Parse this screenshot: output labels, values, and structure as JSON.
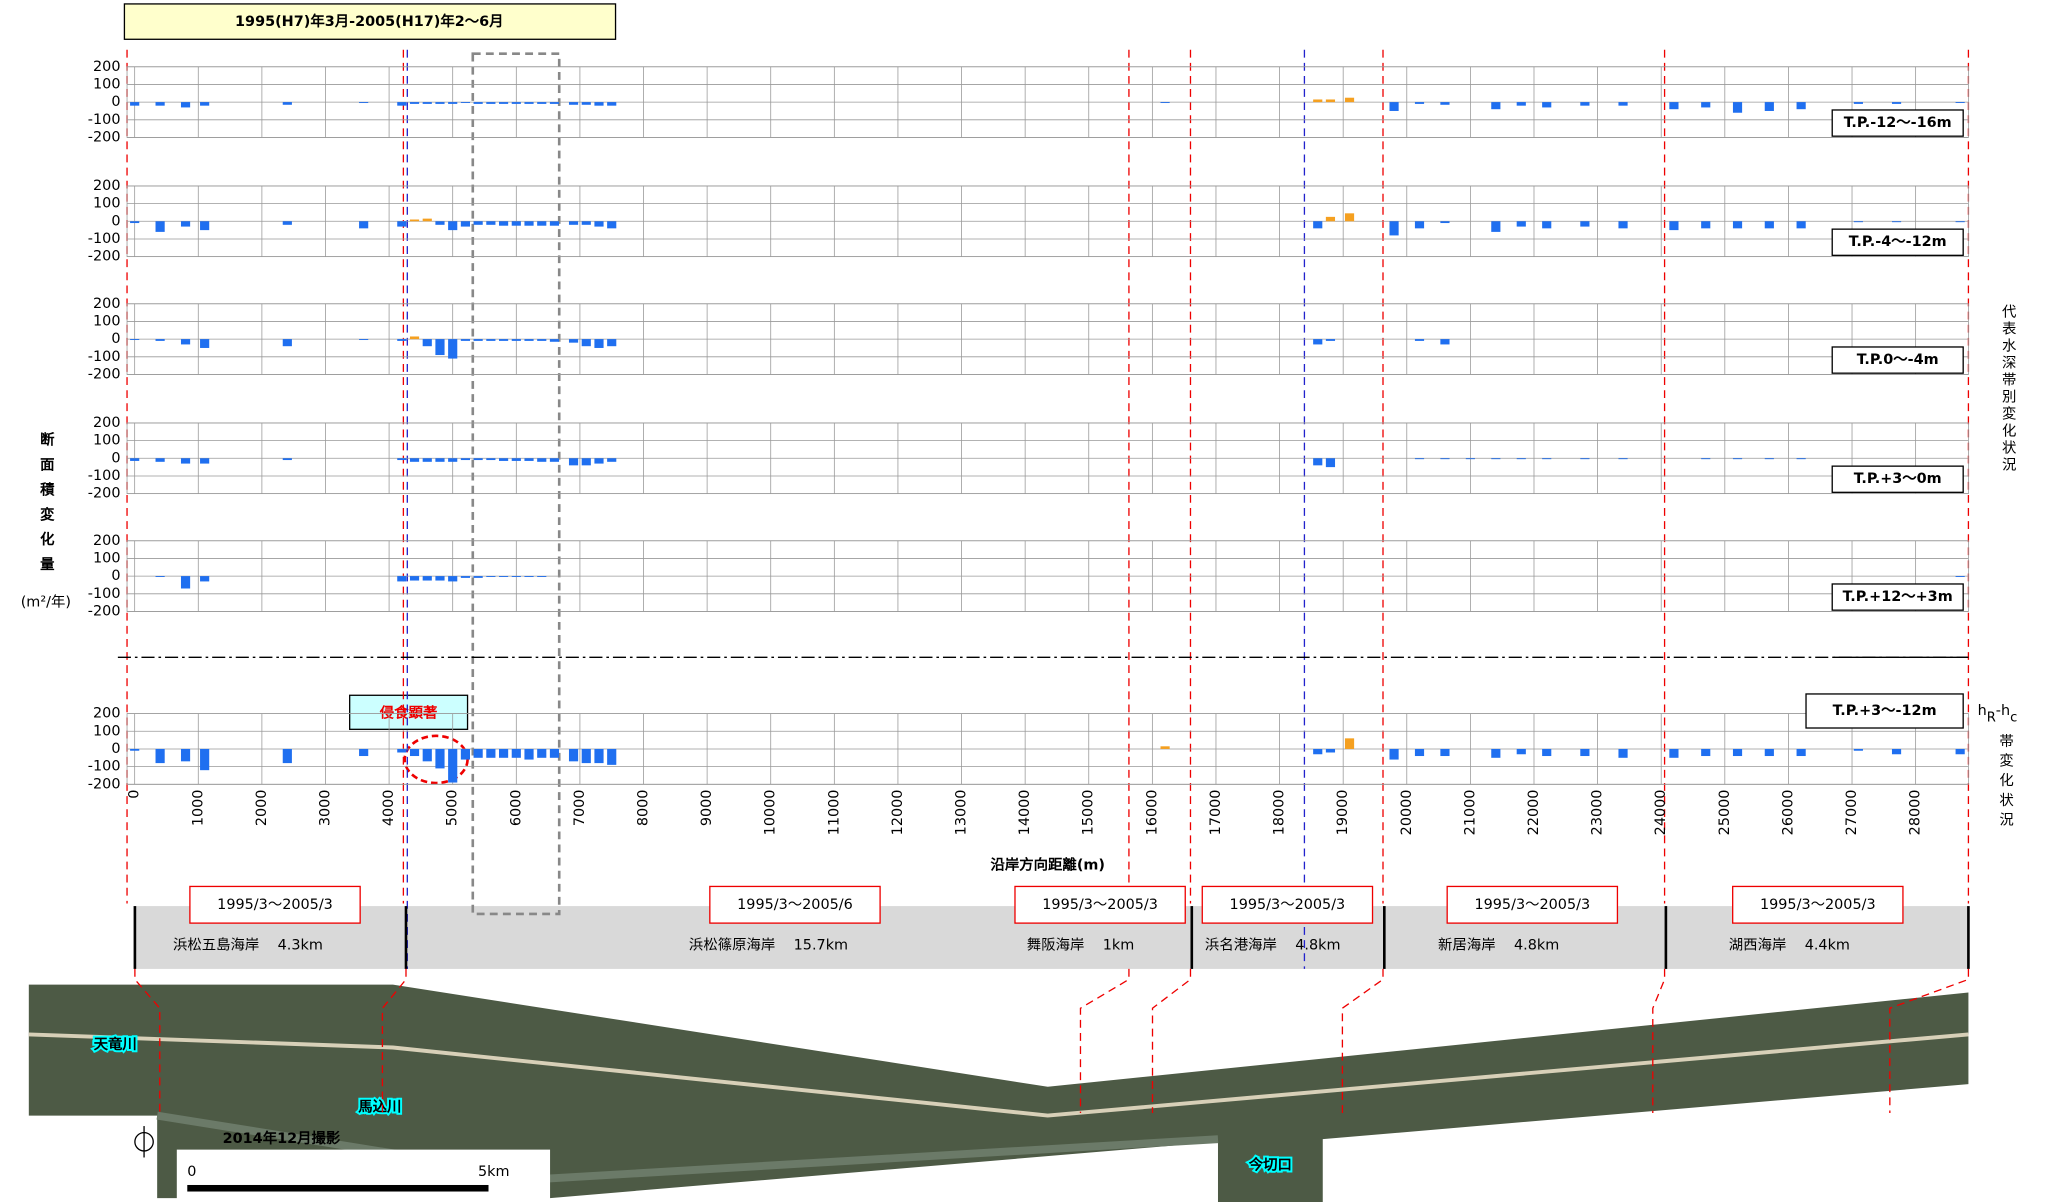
{
  "header": {
    "title": "1995(H7)年3月-2005(H17)年2～6月"
  },
  "chart_data": {
    "type": "bar",
    "xlabel": "沿岸方向距離(m)",
    "ylabel": "断面積変化量",
    "ylabel_unit": "(m²/年)",
    "x": [
      0,
      400,
      800,
      1100,
      2400,
      3600,
      4200,
      4400,
      4600,
      4800,
      5000,
      5200,
      5400,
      5600,
      5800,
      6000,
      6200,
      6400,
      6600,
      6900,
      7100,
      7300,
      7500,
      16200,
      18600,
      18800,
      19100,
      19800,
      20200,
      20600,
      21000,
      21400,
      21800,
      22200,
      22800,
      23400,
      24200,
      24700,
      25200,
      25700,
      26200,
      27100,
      27700,
      28700
    ],
    "xlim": [
      -120,
      28830
    ],
    "xticks": [
      0,
      1000,
      2000,
      3000,
      4000,
      5000,
      6000,
      7000,
      8000,
      9000,
      10000,
      11000,
      12000,
      13000,
      14000,
      15000,
      16000,
      17000,
      18000,
      19000,
      20000,
      21000,
      22000,
      23000,
      24000,
      25000,
      26000,
      27000,
      28000
    ],
    "ylim": [
      -200,
      200
    ],
    "yticks": [
      -200,
      -100,
      0,
      100,
      200
    ],
    "grid": true,
    "colors": {
      "negative": "#1f6ff0",
      "positive": "#f5a020"
    },
    "series": [
      {
        "name": "T.P.-12～-16m",
        "values": [
          -20,
          -20,
          -30,
          -20,
          -15,
          -5,
          -20,
          -10,
          -10,
          -10,
          -10,
          -5,
          -10,
          -10,
          -10,
          -10,
          -10,
          -10,
          -10,
          -15,
          -15,
          -20,
          -20,
          -5,
          15,
          15,
          25,
          -50,
          -10,
          -15,
          null,
          -40,
          -20,
          -30,
          -20,
          -20,
          -40,
          -30,
          -60,
          -50,
          -40,
          -10,
          -10,
          -5
        ]
      },
      {
        "name": "T.P.-4～-12m",
        "values": [
          -10,
          -60,
          -30,
          -50,
          -20,
          -40,
          -30,
          10,
          15,
          -20,
          -50,
          -30,
          -20,
          -20,
          -25,
          -25,
          -25,
          -25,
          -25,
          -20,
          -20,
          -30,
          -40,
          null,
          -40,
          25,
          45,
          -80,
          -40,
          -10,
          null,
          -60,
          -30,
          -40,
          -30,
          -40,
          -50,
          -40,
          -40,
          -40,
          -40,
          -5,
          -5,
          -5
        ]
      },
      {
        "name": "T.P.0～-4m",
        "values": [
          -5,
          -10,
          -30,
          -50,
          -40,
          -5,
          -10,
          15,
          -40,
          -90,
          -110,
          -10,
          -10,
          -10,
          -10,
          -10,
          -10,
          -10,
          -15,
          -20,
          -40,
          -50,
          -40,
          null,
          -30,
          -10,
          null,
          null,
          -10,
          -30,
          null,
          null,
          null,
          null,
          null,
          null,
          null,
          null,
          null,
          null,
          null,
          null,
          null,
          null
        ]
      },
      {
        "name": "T.P.+3～0m",
        "values": [
          -15,
          -20,
          -30,
          -30,
          -10,
          null,
          -10,
          -20,
          -20,
          -20,
          -20,
          -10,
          -10,
          -10,
          -15,
          -15,
          -15,
          -20,
          -20,
          -40,
          -40,
          -30,
          -20,
          null,
          -40,
          -50,
          null,
          null,
          -5,
          -5,
          -5,
          -5,
          -5,
          -5,
          -5,
          -5,
          null,
          -5,
          -5,
          -5,
          -5,
          null,
          null,
          null
        ]
      },
      {
        "name": "T.P.+12～+3m",
        "values": [
          null,
          -5,
          -70,
          -30,
          null,
          null,
          -30,
          -25,
          -25,
          -25,
          -30,
          -10,
          -10,
          -5,
          -5,
          -5,
          -5,
          -5,
          null,
          null,
          null,
          null,
          null,
          null,
          null,
          null,
          null,
          null,
          null,
          null,
          null,
          null,
          null,
          null,
          null,
          null,
          null,
          null,
          null,
          null,
          null,
          null,
          null,
          -5
        ]
      },
      {
        "name": "T.P.+3～-12m",
        "values": [
          -10,
          -80,
          -70,
          -120,
          -80,
          -40,
          -20,
          -40,
          -70,
          -110,
          -190,
          -60,
          -50,
          -50,
          -50,
          -50,
          -60,
          -50,
          -50,
          -70,
          -80,
          -80,
          -90,
          15,
          -30,
          -20,
          60,
          -60,
          -40,
          -40,
          null,
          -50,
          -30,
          -40,
          -40,
          -50,
          -50,
          -40,
          -40,
          -40,
          -40,
          -10,
          -30,
          -30
        ]
      }
    ]
  },
  "annotations": {
    "erosion": "侵食顕著",
    "right_title": "代表水深帯別変化状況",
    "hr_h": "h",
    "hr_r": "R",
    "hr_mid": "-h",
    "hr_c": "c",
    "band_note": "帯変化状況"
  },
  "segments": [
    {
      "period": "1995/3～2005/3",
      "name": "浜松五島海岸",
      "length": "4.3km"
    },
    {
      "period": "1995/3～2005/6",
      "name": "浜松篠原海岸",
      "length": "15.7km"
    },
    {
      "period": "1995/3～2005/3",
      "name": "舞阪海岸",
      "length": "1km"
    },
    {
      "period": "1995/3～2005/3",
      "name": "浜名港海岸",
      "length": "4.8km"
    },
    {
      "period": "1995/3～2005/3",
      "name": "新居海岸",
      "length": "4.8km"
    },
    {
      "period": "1995/3～2005/3",
      "name": "湖西海岸",
      "length": "4.4km"
    }
  ],
  "photo": {
    "river1": "天竜川",
    "river2": "馬込川",
    "inlet": "今切口",
    "date": "2014年12月撮影",
    "scale_start": "0",
    "scale_end": "5km"
  }
}
